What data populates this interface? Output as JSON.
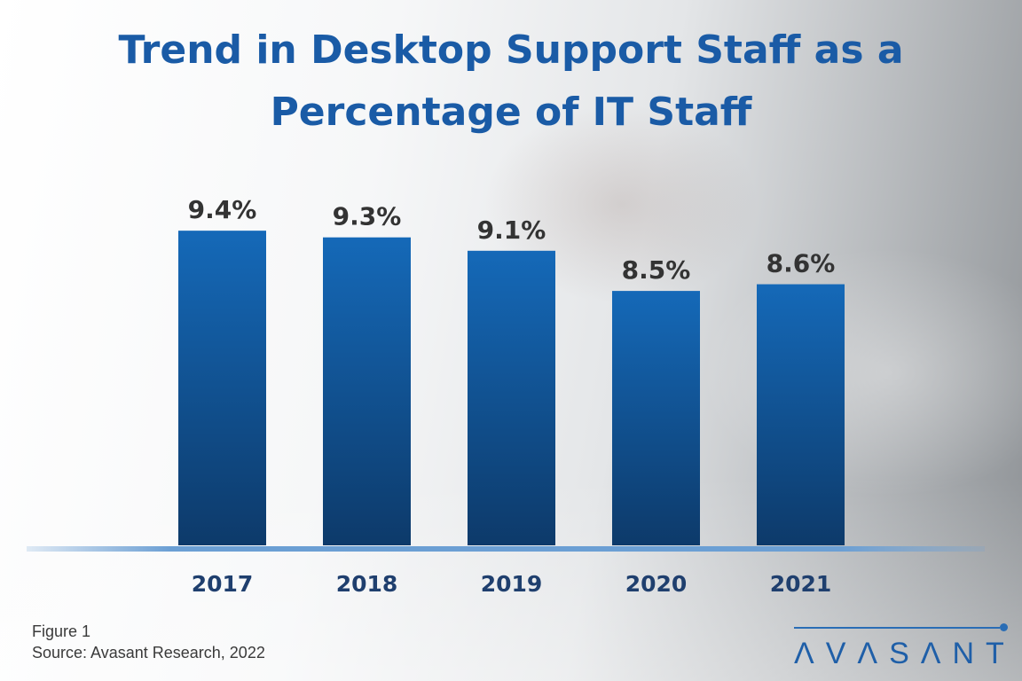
{
  "chart_data": {
    "type": "bar",
    "title": "Trend in Desktop Support Staff as a Percentage of IT Staff",
    "title_lines": [
      "Trend in Desktop Support Staff as a",
      "Percentage of IT Staff"
    ],
    "categories": [
      "2017",
      "2018",
      "2019",
      "2020",
      "2021"
    ],
    "values": [
      9.4,
      9.3,
      9.1,
      8.5,
      8.6
    ],
    "labels": [
      "9.4%",
      "9.3%",
      "9.1%",
      "8.5%",
      "8.6%"
    ],
    "xlabel": "",
    "ylabel": "",
    "ylim": [
      4.7,
      10
    ],
    "grid": false,
    "colors": {
      "bar_top": "#1569b8",
      "bar_bottom": "#0d3a6a",
      "title": "#1a5ba6",
      "axis": "#6b9fd4",
      "year": "#1f3f6e",
      "label": "#333333"
    }
  },
  "footer": {
    "figure": "Figure 1",
    "source": "Source: Avasant Research, 2022"
  },
  "logo": {
    "text": "AVASANT"
  }
}
